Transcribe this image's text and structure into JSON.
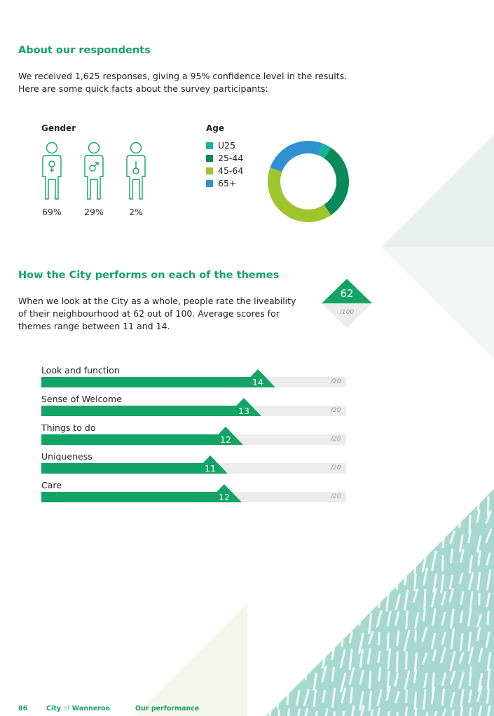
{
  "respondents": {
    "heading": "About our respondents",
    "intro_line1": "We received 1,625 responses, giving a 95% confidence level in the results.",
    "intro_line2": "Here are some quick facts about the survey participants:"
  },
  "gender": {
    "title": "Gender",
    "items": [
      {
        "icon": "female-figure-icon",
        "value": "69%"
      },
      {
        "icon": "male-figure-icon",
        "value": "29%"
      },
      {
        "icon": "other-gender-figure-icon",
        "value": "2%"
      }
    ]
  },
  "age": {
    "title": "Age",
    "legend": [
      "U25",
      "25-44",
      "45-64",
      "65+"
    ],
    "colors": [
      "#17b39a",
      "#0a8a5a",
      "#9fc52c",
      "#2f91cf"
    ]
  },
  "chart_data": {
    "type": "pie",
    "variant": "donut",
    "categories": [
      "U25",
      "25-44",
      "45-64",
      "65+"
    ],
    "values": [
      4,
      31,
      40,
      25
    ],
    "colors": [
      "#17b39a",
      "#0a8a5a",
      "#9fc52c",
      "#2f91cf"
    ]
  },
  "themes": {
    "heading": "How the City performs on each of the themes",
    "text_line1": "When we look at the City as a whole, people rate the liveability",
    "text_line2": "of their neighbourhood at 62 out of 100. Average scores for",
    "text_line3": "themes range between 11 and 14.",
    "overall_score": "62",
    "overall_max": "/100",
    "max_label": "/20",
    "max_value": 20,
    "bars": [
      {
        "label": "Look and function",
        "score": "14",
        "value": 14.2
      },
      {
        "label": "Sense of Welcome",
        "score": "13",
        "value": 13.3
      },
      {
        "label": "Things to do",
        "score": "12",
        "value": 12.1
      },
      {
        "label": "Uniqueness",
        "score": "11",
        "value": 11.1
      },
      {
        "label": "Care",
        "score": "12",
        "value": 12.0
      }
    ]
  },
  "footer": {
    "page_number": "86",
    "city_prefix": "City",
    "city_of": "of",
    "city_name": "Wanneroo",
    "section": "Our performance"
  }
}
